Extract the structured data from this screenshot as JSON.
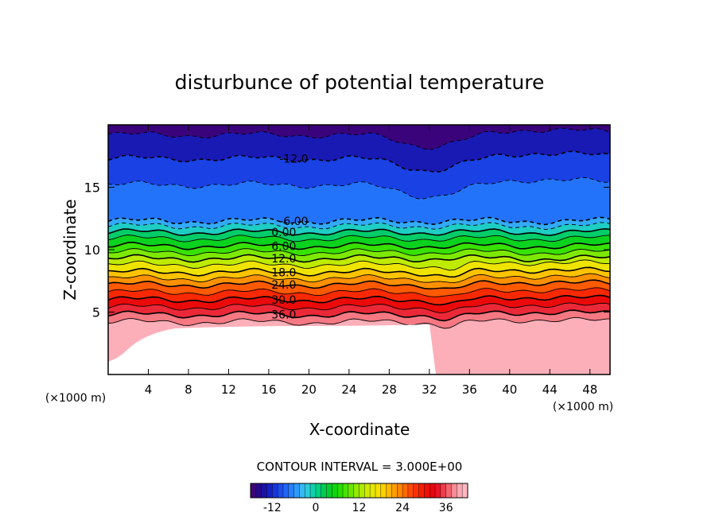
{
  "chart_data": {
    "type": "contour",
    "title": "disturbunce of potential temperature",
    "xlabel": "X-coordinate",
    "ylabel": "Z-coordinate",
    "x_unit": "(×1000 m)",
    "z_unit": "(×1000 m)",
    "xlim": [
      0,
      50
    ],
    "ylim": [
      0,
      20
    ],
    "x_ticks": [
      4,
      8,
      12,
      16,
      20,
      24,
      28,
      32,
      36,
      40,
      44,
      48
    ],
    "y_ticks": [
      5,
      10,
      15
    ],
    "contour_interval": "CONTOUR INTERVAL = 3.000E+00",
    "negative_contours_dashed": true,
    "contour_labels": [
      {
        "label": "-12.0",
        "x": 18.5,
        "z": 17.3
      },
      {
        "label": "-6.00",
        "x": 18.5,
        "z": 12.3
      },
      {
        "label": "0.00",
        "x": 17.5,
        "z": 11.4
      },
      {
        "label": "6.00",
        "x": 17.5,
        "z": 10.3
      },
      {
        "label": "12.0",
        "x": 17.5,
        "z": 9.3
      },
      {
        "label": "18.0",
        "x": 17.5,
        "z": 8.2
      },
      {
        "label": "24.0",
        "x": 17.5,
        "z": 7.2
      },
      {
        "label": "30.0",
        "x": 17.5,
        "z": 6.0
      },
      {
        "label": "36.0",
        "x": 17.5,
        "z": 4.8
      }
    ],
    "isotherms": [
      {
        "value": -15,
        "z": 19.2
      },
      {
        "value": -12,
        "z": 17.3
      },
      {
        "value": -9,
        "z": 15.2
      },
      {
        "value": -6,
        "z": 12.3
      },
      {
        "value": -3,
        "z": 11.9
      },
      {
        "value": 0,
        "z": 11.4
      },
      {
        "value": 3,
        "z": 10.9
      },
      {
        "value": 6,
        "z": 10.3
      },
      {
        "value": 9,
        "z": 9.8
      },
      {
        "value": 12,
        "z": 9.3
      },
      {
        "value": 15,
        "z": 8.8
      },
      {
        "value": 18,
        "z": 8.2
      },
      {
        "value": 21,
        "z": 7.7
      },
      {
        "value": 24,
        "z": 7.2
      },
      {
        "value": 27,
        "z": 6.6
      },
      {
        "value": 30,
        "z": 6.0
      },
      {
        "value": 33,
        "z": 5.4
      },
      {
        "value": 36,
        "z": 4.8
      },
      {
        "value": 39,
        "z": 4.2
      }
    ],
    "colorbar": {
      "min": -18,
      "max": 42,
      "ticks": [
        "-12",
        "0",
        "12",
        "24",
        "36"
      ]
    }
  }
}
